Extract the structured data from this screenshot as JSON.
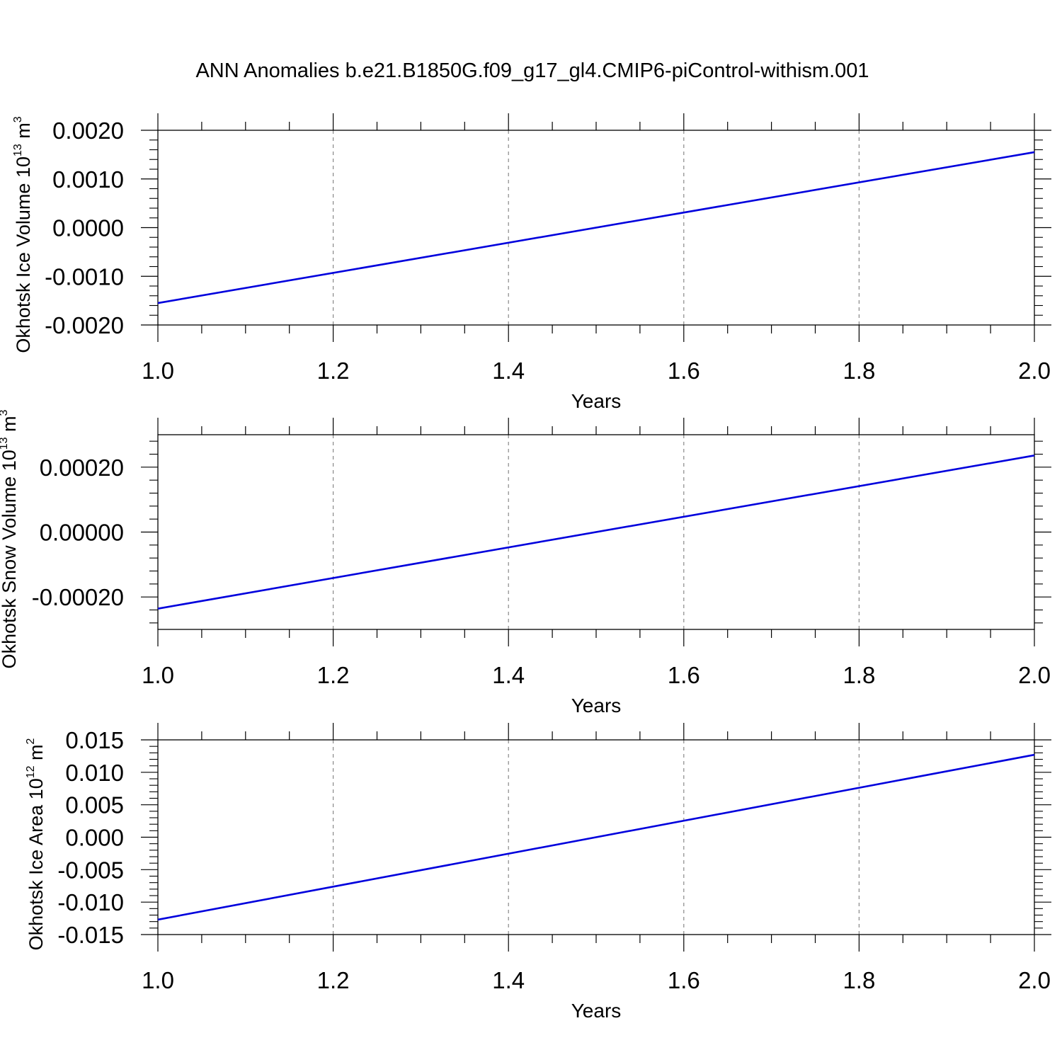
{
  "chart_data": {
    "title": "ANN Anomalies b.e21.B1850G.f09_g17_gl4.CMIP6-piControl-withism.001",
    "panels": [
      {
        "type": "line",
        "ylabel": "Okhotsk Ice Volume 10",
        "ylabel_exp": "13",
        "ylabel_unit": " m",
        "ylabel_unit_exp": "3",
        "xlabel": "Years",
        "xlim": [
          1.0,
          2.0
        ],
        "ylim": [
          -0.002,
          0.002
        ],
        "x_ticks": [
          "1.0",
          "1.2",
          "1.4",
          "1.6",
          "1.8",
          "2.0"
        ],
        "y_ticks": [
          {
            "value": 0.002,
            "label": "0.0020"
          },
          {
            "value": 0.001,
            "label": "0.0010"
          },
          {
            "value": 0.0,
            "label": "0.0000"
          },
          {
            "value": -0.001,
            "label": "-0.0010"
          },
          {
            "value": -0.002,
            "label": "-0.0020"
          }
        ],
        "grid": "vertical dashed",
        "series": [
          {
            "color": "#0000dd",
            "x": [
              1.0,
              2.0
            ],
            "y": [
              -0.00155,
              0.00155
            ]
          }
        ]
      },
      {
        "type": "line",
        "ylabel": "Okhotsk Snow Volume 10",
        "ylabel_exp": "13",
        "ylabel_unit": " m",
        "ylabel_unit_exp": "3",
        "xlabel": "Years",
        "xlim": [
          1.0,
          2.0
        ],
        "ylim": [
          -0.0003,
          0.0003
        ],
        "x_ticks": [
          "1.0",
          "1.2",
          "1.4",
          "1.6",
          "1.8",
          "2.0"
        ],
        "y_ticks": [
          {
            "value": 0.0002,
            "label": "0.00020"
          },
          {
            "value": 0.0,
            "label": "0.00000"
          },
          {
            "value": -0.0002,
            "label": "-0.00020"
          }
        ],
        "grid": "vertical dashed",
        "series": [
          {
            "color": "#0000dd",
            "x": [
              1.0,
              2.0
            ],
            "y": [
              -0.000236,
              0.000236
            ]
          }
        ]
      },
      {
        "type": "line",
        "ylabel": "Okhotsk Ice Area 10",
        "ylabel_exp": "12",
        "ylabel_unit": " m",
        "ylabel_unit_exp": "2",
        "xlabel": "Years",
        "xlim": [
          1.0,
          2.0
        ],
        "ylim": [
          -0.015,
          0.015
        ],
        "x_ticks": [
          "1.0",
          "1.2",
          "1.4",
          "1.6",
          "1.8",
          "2.0"
        ],
        "y_ticks": [
          {
            "value": 0.015,
            "label": "0.015"
          },
          {
            "value": 0.01,
            "label": "0.010"
          },
          {
            "value": 0.005,
            "label": "0.005"
          },
          {
            "value": 0.0,
            "label": "0.000"
          },
          {
            "value": -0.005,
            "label": "-0.005"
          },
          {
            "value": -0.01,
            "label": "-0.010"
          },
          {
            "value": -0.015,
            "label": "-0.015"
          }
        ],
        "grid": "vertical dashed",
        "series": [
          {
            "color": "#0000dd",
            "x": [
              1.0,
              2.0
            ],
            "y": [
              -0.0127,
              0.0127
            ]
          }
        ]
      }
    ]
  }
}
